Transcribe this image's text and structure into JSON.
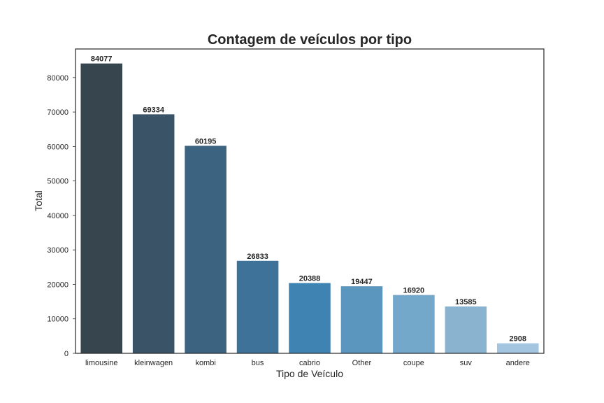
{
  "chart_data": {
    "type": "bar",
    "title": "Contagem de veículos por tipo",
    "xlabel": "Tipo de Veículo",
    "ylabel": "Total",
    "categories": [
      "limousine",
      "kleinwagen",
      "kombi",
      "bus",
      "cabrio",
      "Other",
      "coupe",
      "suv",
      "andere"
    ],
    "values": [
      84077,
      69334,
      60195,
      26833,
      20388,
      19447,
      16920,
      13585,
      2908
    ],
    "data_labels": [
      "84077",
      "69334",
      "60195",
      "26833",
      "20388",
      "19447",
      "16920",
      "13585",
      "2908"
    ],
    "yticks": [
      0,
      10000,
      20000,
      30000,
      40000,
      50000,
      60000,
      70000,
      80000
    ],
    "ylim": [
      0,
      88285
    ],
    "colors": [
      "#37454f",
      "#3b5367",
      "#3c6380",
      "#3e7298",
      "#3f83b3",
      "#5b96bf",
      "#74a8cb",
      "#8ab3cf",
      "#a4c5df"
    ],
    "grid": false,
    "legend": "none"
  }
}
